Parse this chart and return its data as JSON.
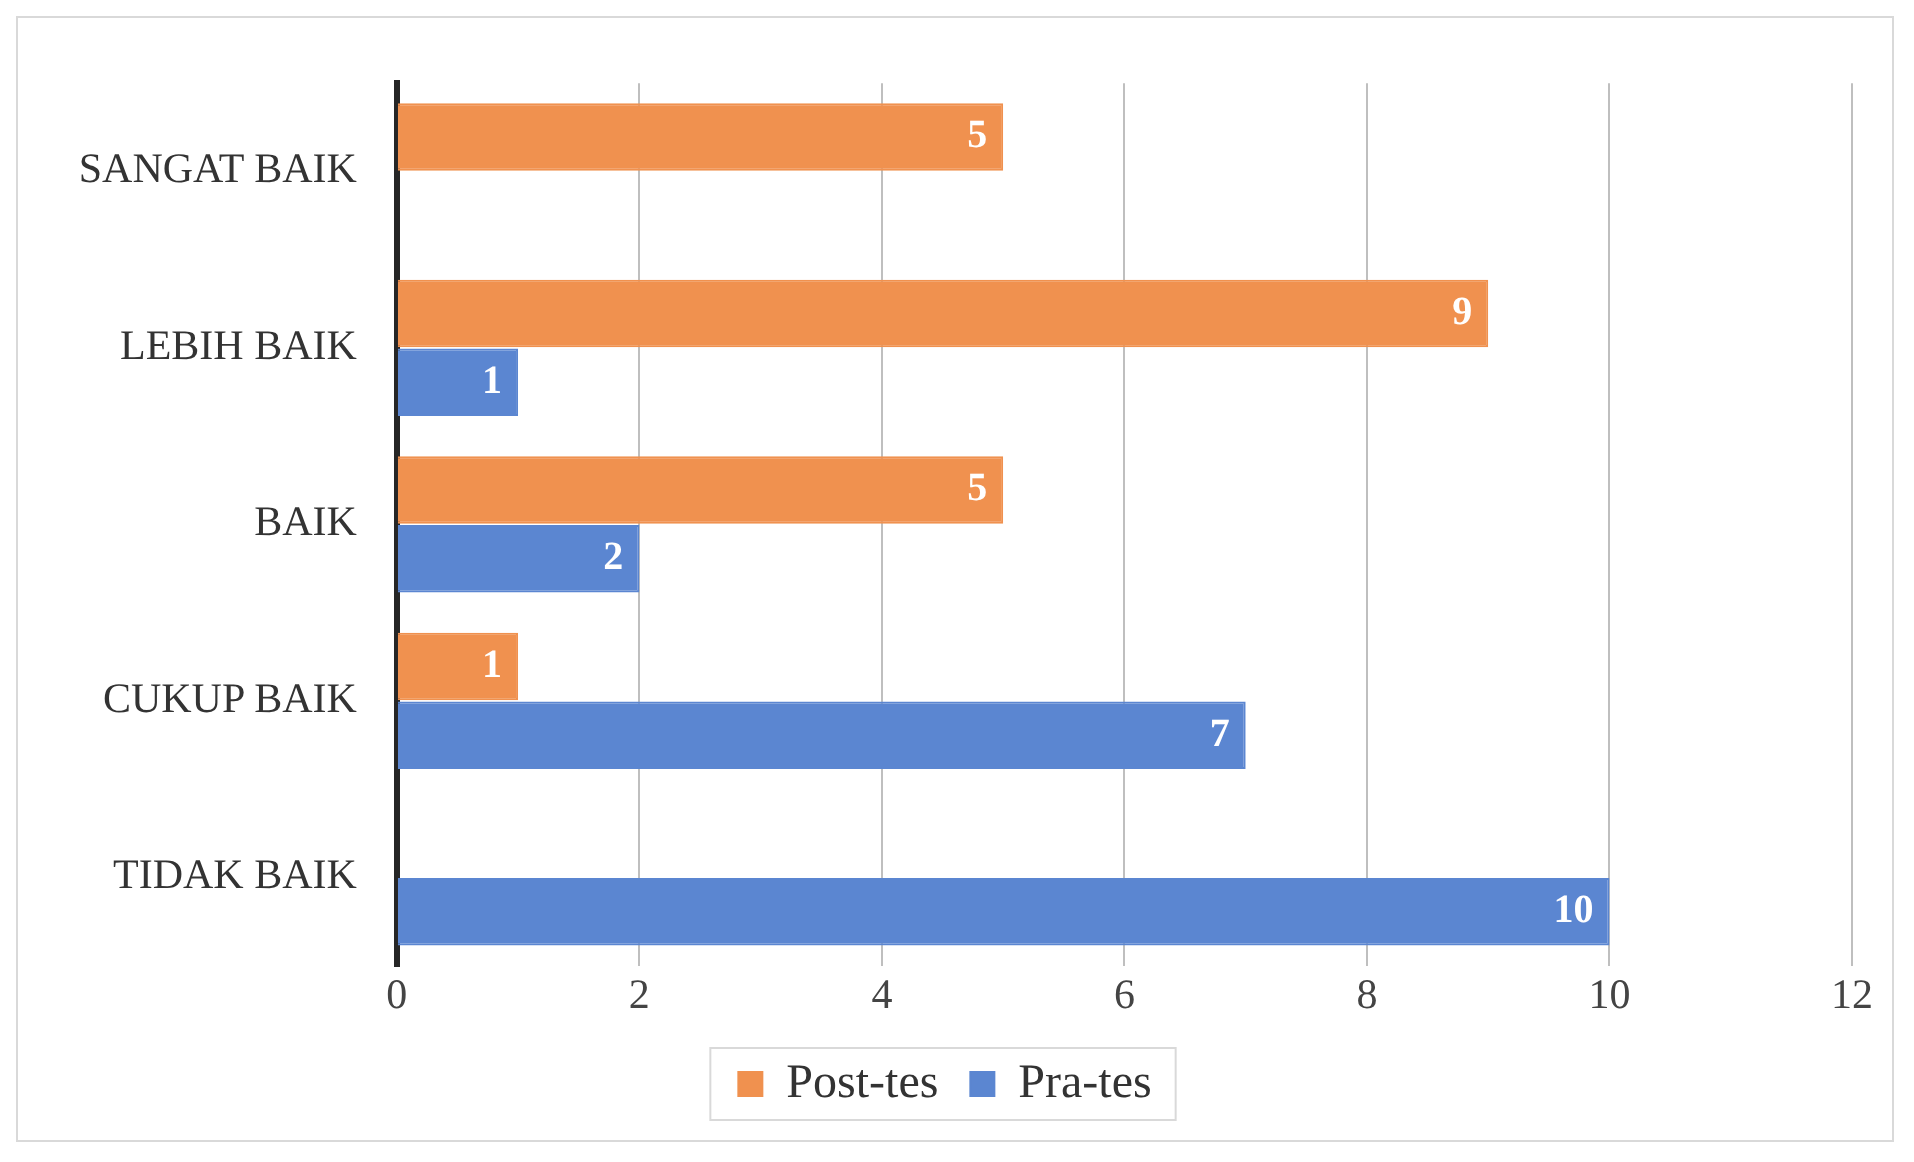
{
  "chart_data": {
    "type": "bar",
    "orientation": "horizontal",
    "categories": [
      "SANGAT BAIK",
      "LEBIH BAIK",
      "BAIK",
      "CUKUP BAIK",
      "TIDAK BAIK"
    ],
    "series": [
      {
        "name": "Post-tes",
        "color": "#f0914f",
        "values": [
          5,
          9,
          5,
          1,
          null
        ]
      },
      {
        "name": "Pra-tes",
        "color": "#5b86d1",
        "values": [
          null,
          1,
          2,
          7,
          10
        ]
      }
    ],
    "xlim": [
      0,
      12
    ],
    "xticks": [
      0,
      2,
      4,
      6,
      8,
      10,
      12
    ],
    "grid": "x",
    "legend": "bottom",
    "data_labels": true
  }
}
